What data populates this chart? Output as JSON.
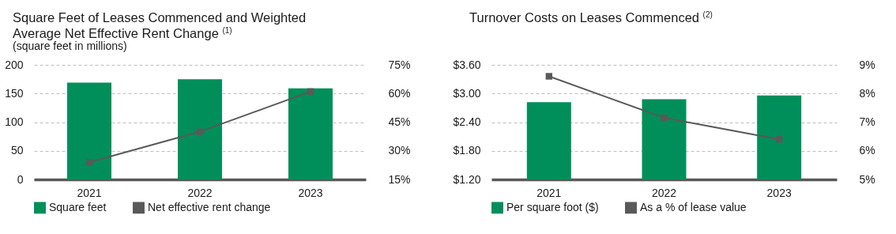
{
  "chart_data": [
    {
      "type": "bar",
      "title": "Square Feet of Leases Commenced and Weighted Average Net Effective Rent Change $^{(1)}$",
      "subtitle": "(square feet in millions)",
      "categories": [
        "2021",
        "2022",
        "2023"
      ],
      "series": [
        {
          "name": "Square feet",
          "color": "#008f5a",
          "values": [
            169,
            175,
            159
          ]
        },
        {
          "name": "Net effective rent change",
          "type": "line",
          "axis": "y2",
          "color": "#595959",
          "values": [
            24,
            40,
            61
          ]
        }
      ],
      "ylim": [
        0,
        200
      ],
      "yticks": [
        0,
        50,
        100,
        150,
        200
      ],
      "y2lim": [
        15,
        75
      ],
      "y2ticks": [
        {
          "value": 15,
          "label": "15%"
        },
        {
          "value": 30,
          "label": "30%"
        },
        {
          "value": 45,
          "label": "45%"
        },
        {
          "value": 60,
          "label": "60%"
        },
        {
          "value": 75,
          "label": "75%"
        }
      ],
      "grid": "y",
      "legend": "bottom",
      "marker": "square"
    },
    {
      "type": "bar",
      "title": "Turnover Costs on Leases Commenced $^{(2)}$",
      "categories": [
        "2021",
        "2022",
        "2023"
      ],
      "series": [
        {
          "name": "Per square foot ($)",
          "color": "#008f5a",
          "values": [
            2.82,
            2.88,
            2.96
          ]
        },
        {
          "name": "As a % of lease value",
          "type": "line",
          "axis": "y2",
          "color": "#595959",
          "values": [
            8.6,
            7.15,
            6.4
          ]
        }
      ],
      "ylim": [
        1.2,
        3.6
      ],
      "yticks": [
        {
          "value": 1.2,
          "label": "$1.20"
        },
        {
          "value": 1.8,
          "label": "$1.80"
        },
        {
          "value": 2.4,
          "label": "$2.40"
        },
        {
          "value": 3.0,
          "label": "$3.00"
        },
        {
          "value": 3.6,
          "label": "$3.60"
        }
      ],
      "y2lim": [
        5,
        9
      ],
      "y2ticks": [
        {
          "value": 5,
          "label": "5%"
        },
        {
          "value": 6,
          "label": "6%"
        },
        {
          "value": 7,
          "label": "7%"
        },
        {
          "value": 8,
          "label": "8%"
        },
        {
          "value": 9,
          "label": "9%"
        }
      ],
      "grid": "y",
      "legend": "bottom",
      "marker": "square"
    }
  ]
}
